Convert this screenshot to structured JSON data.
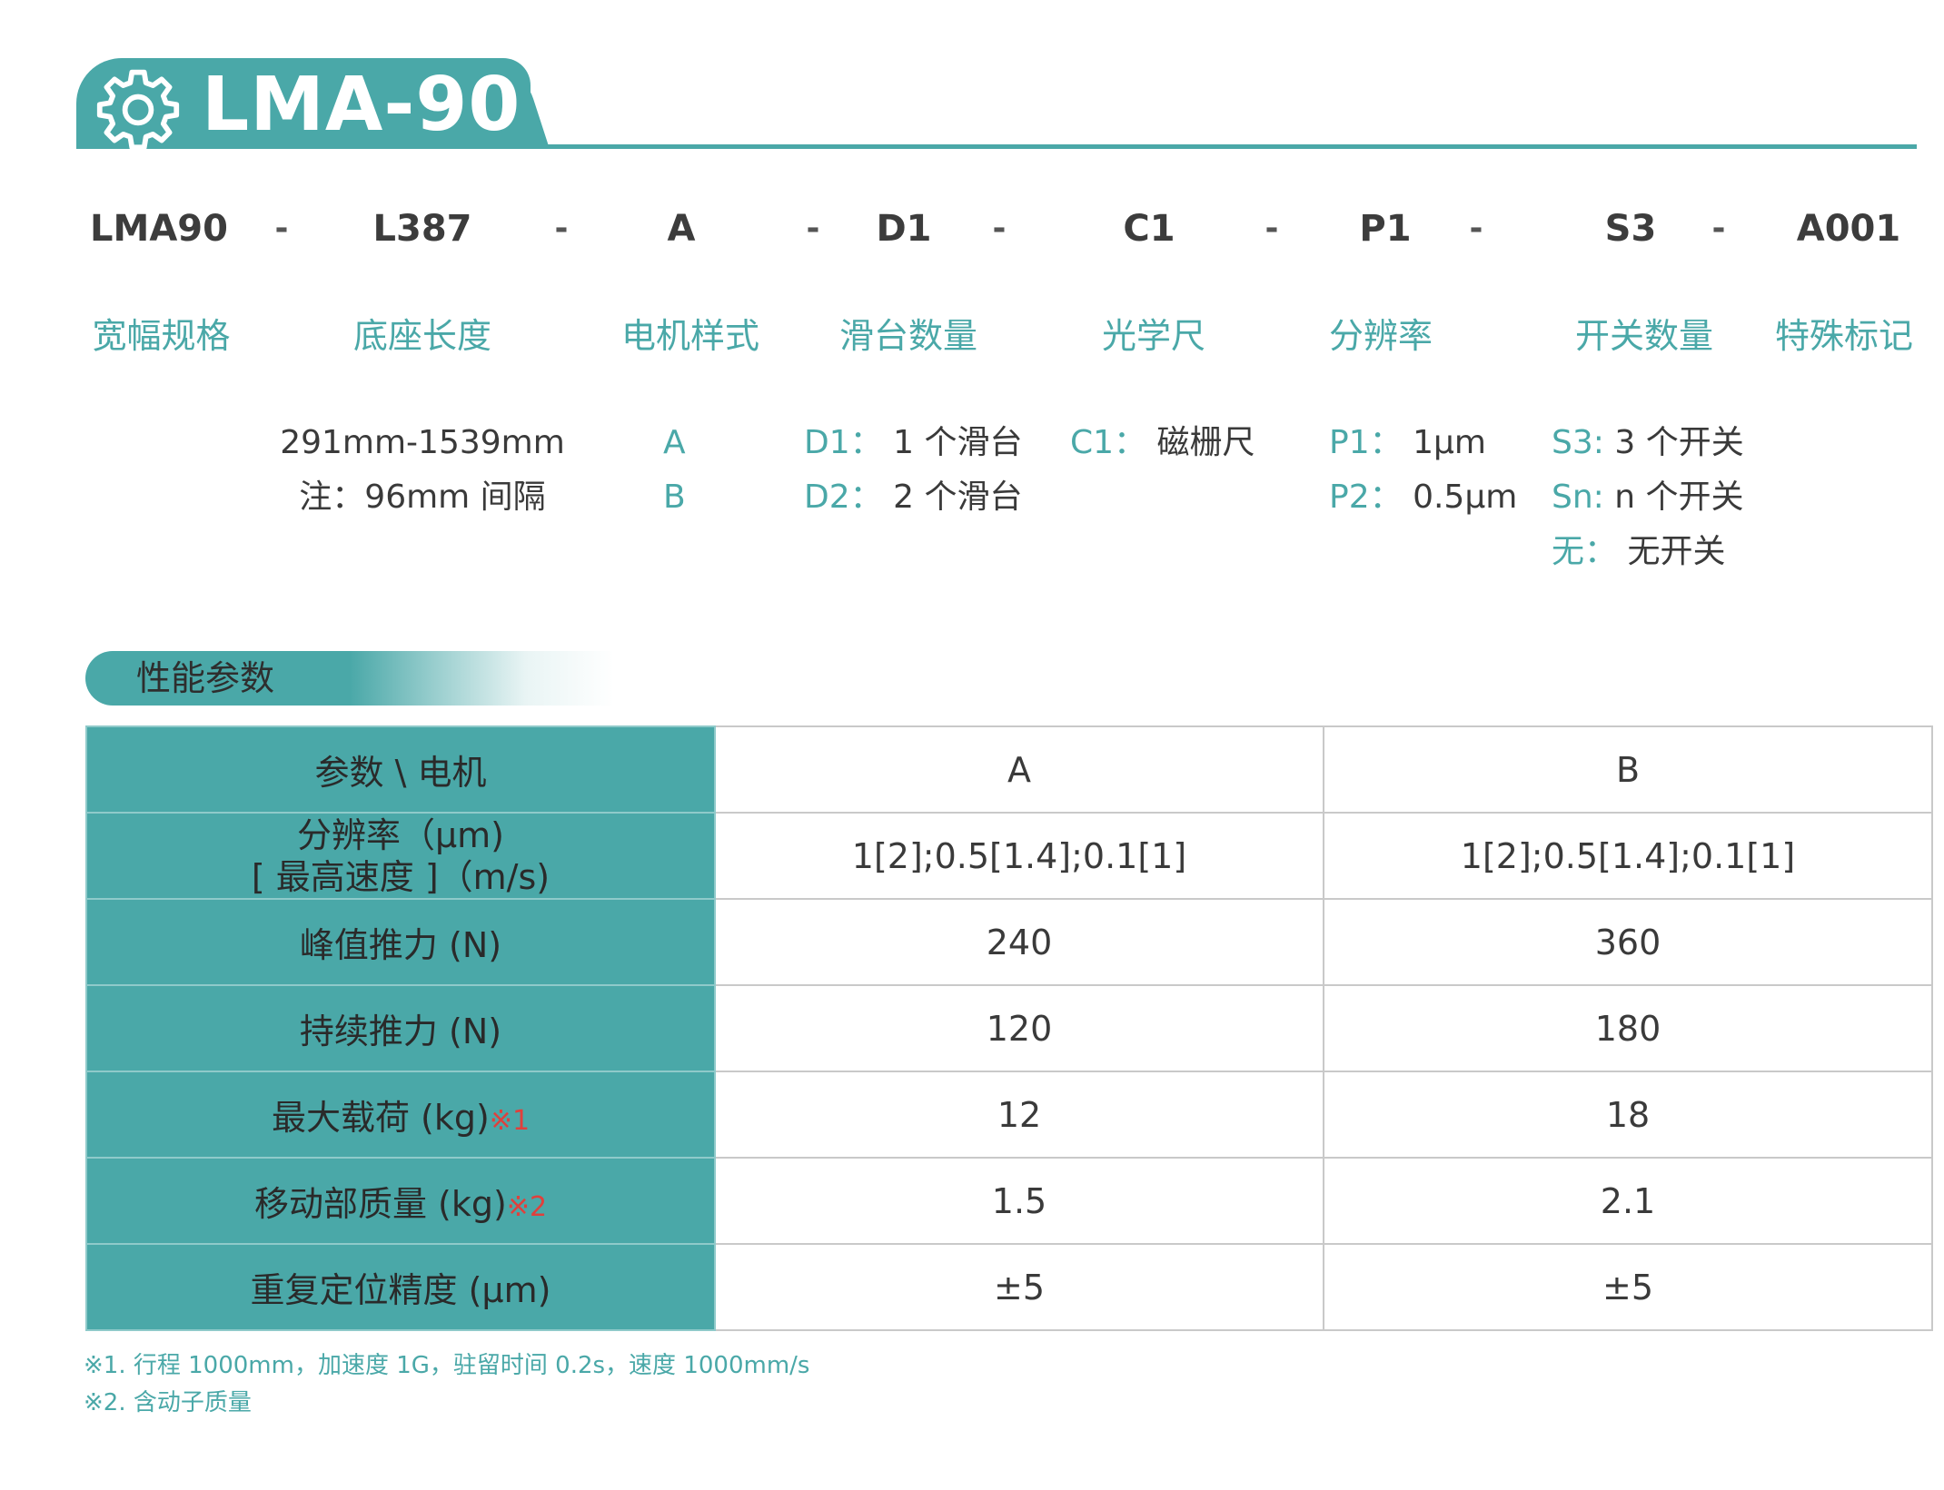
{
  "colors": {
    "accent": "#4aa8a8",
    "note_mark": "#e0403c",
    "text": "#3a3a3a"
  },
  "header": {
    "icon": "gear-icon",
    "title": "LMA-90"
  },
  "model_code": {
    "parts": [
      "LMA90",
      "L387",
      "A",
      "D1",
      "C1",
      "P1",
      "S3",
      "A001"
    ],
    "separator": "-"
  },
  "categories": [
    "宽幅规格",
    "底座长度",
    "电机样式",
    "滑台数量",
    "光学尺",
    "分辨率",
    "开关数量",
    "特殊标记"
  ],
  "options": {
    "length": [
      "291mm-1539mm",
      "注：96mm 间隔"
    ],
    "motor": [
      "A",
      "B"
    ],
    "slides": [
      {
        "code": "D1：",
        "text": "1 个滑台"
      },
      {
        "code": "D2：",
        "text": "2 个滑台"
      }
    ],
    "scale": {
      "code": "C1：",
      "text": "磁栅尺"
    },
    "resolution": [
      {
        "code": "P1：",
        "text": "1μm"
      },
      {
        "code": "P2：",
        "text": "0.5μm"
      }
    ],
    "switches": [
      {
        "code": "S3:",
        "text": "3 个开关"
      },
      {
        "code": "Sn:",
        "text": "n 个开关"
      },
      {
        "code": "无：",
        "text": "无开关"
      }
    ]
  },
  "section_title": "性能参数",
  "table": {
    "header": {
      "label": "参数 \\ 电机",
      "col_a": "A",
      "col_b": "B"
    },
    "rows": [
      {
        "label_line1": "分辨率（μm)",
        "label_line2": "[ 最高速度 ]（m/s)",
        "mark": "",
        "a": "1[2];0.5[1.4];0.1[1]",
        "b": "1[2];0.5[1.4];0.1[1]"
      },
      {
        "label": "峰值推力 (N)",
        "mark": "",
        "a": "240",
        "b": "360"
      },
      {
        "label": "持续推力 (N)",
        "mark": "",
        "a": "120",
        "b": "180"
      },
      {
        "label": "最大载荷 (kg)",
        "mark": "※1",
        "a": "12",
        "b": "18"
      },
      {
        "label": "移动部质量 (kg)",
        "mark": "※2",
        "a": "1.5",
        "b": "2.1"
      },
      {
        "label": "重复定位精度 (μm)",
        "mark": "",
        "a": "±5",
        "b": "±5"
      }
    ]
  },
  "notes": [
    "※1. 行程 1000mm，加速度 1G，驻留时间 0.2s，速度 1000mm/s",
    "※2. 含动子质量"
  ]
}
